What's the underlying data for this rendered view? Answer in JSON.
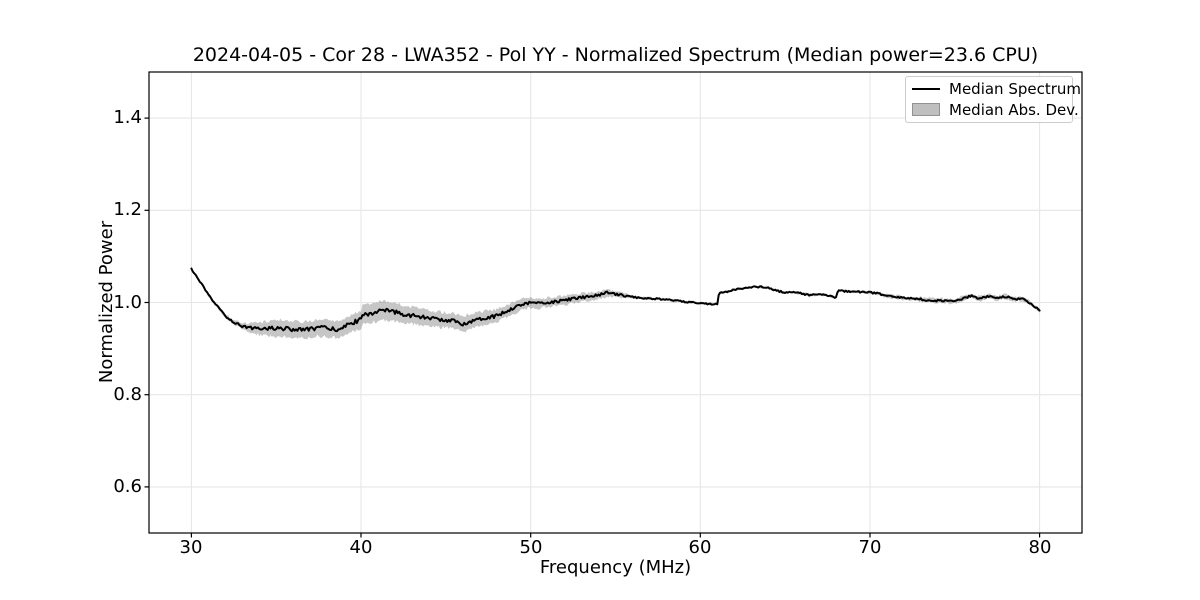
{
  "chart_data": {
    "type": "line",
    "title": "2024-04-05 - Cor 28 - LWA352 - Pol YY - Normalized Spectrum (Median power=23.6 CPU)",
    "xlabel": "Frequency (MHz)",
    "ylabel": "Normalized Power",
    "xlim": [
      27.5,
      82.5
    ],
    "ylim": [
      0.5,
      1.5
    ],
    "xticks": [
      30,
      40,
      50,
      60,
      70,
      80
    ],
    "yticks": [
      0.6,
      0.8,
      1.0,
      1.2,
      1.4
    ],
    "grid": true,
    "legend": [
      "Median Spectrum",
      "Median Abs. Dev."
    ],
    "legend_position": "upper right",
    "colors": {
      "line": "#000000",
      "band": "#808080",
      "band_alpha": 0.45,
      "grid": "#e6e6e6",
      "frame": "#000000",
      "background": "#ffffff",
      "text": "#000000"
    },
    "series": [
      {
        "name": "Median Spectrum",
        "x_start": 30.0,
        "x_step": 0.5,
        "y": [
          1.072,
          1.046,
          1.016,
          0.993,
          0.971,
          0.957,
          0.949,
          0.945,
          0.943,
          0.944,
          0.945,
          0.943,
          0.942,
          0.941,
          0.942,
          0.946,
          0.944,
          0.941,
          0.947,
          0.956,
          0.963,
          0.976,
          0.98,
          0.982,
          0.979,
          0.975,
          0.972,
          0.968,
          0.967,
          0.963,
          0.962,
          0.959,
          0.953,
          0.96,
          0.965,
          0.968,
          0.971,
          0.98,
          0.989,
          0.996,
          1.0,
          0.998,
          1.0,
          1.002,
          1.005,
          1.008,
          1.011,
          1.013,
          1.016,
          1.021,
          1.018,
          1.015,
          1.012,
          1.01,
          1.009,
          1.008,
          1.006,
          1.004,
          1.002,
          1.0,
          0.999,
          0.997,
          0.997,
          1.022,
          1.028,
          1.031,
          1.033,
          1.034,
          1.032,
          1.026,
          1.021,
          1.023,
          1.019,
          1.016,
          1.018,
          1.015,
          1.01,
          1.025,
          1.024,
          1.023,
          1.022,
          1.019,
          1.014,
          1.012,
          1.01,
          1.008,
          1.007,
          1.005,
          1.004,
          1.003,
          1.003,
          1.009,
          1.015,
          1.008,
          1.014,
          1.009,
          1.013,
          1.007,
          1.008,
          0.998,
          0.982
        ]
      },
      {
        "name": "Median Abs. Dev.",
        "x_start": 30.0,
        "x_step": 0.5,
        "half_width": [
          0.002,
          0.002,
          0.003,
          0.003,
          0.004,
          0.005,
          0.007,
          0.01,
          0.013,
          0.016,
          0.018,
          0.018,
          0.018,
          0.017,
          0.018,
          0.019,
          0.019,
          0.018,
          0.018,
          0.018,
          0.019,
          0.02,
          0.021,
          0.021,
          0.02,
          0.019,
          0.018,
          0.018,
          0.017,
          0.017,
          0.016,
          0.017,
          0.017,
          0.016,
          0.015,
          0.015,
          0.014,
          0.013,
          0.013,
          0.012,
          0.011,
          0.011,
          0.01,
          0.01,
          0.01,
          0.009,
          0.009,
          0.009,
          0.008,
          0.008,
          0.006,
          0.005,
          0.002,
          0.002,
          0.002,
          0.002,
          0.002,
          0.002,
          0.002,
          0.002,
          0.002,
          0.002,
          0.002,
          0.002,
          0.002,
          0.002,
          0.002,
          0.002,
          0.002,
          0.002,
          0.002,
          0.002,
          0.002,
          0.002,
          0.002,
          0.002,
          0.002,
          0.002,
          0.002,
          0.002,
          0.003,
          0.003,
          0.004,
          0.004,
          0.004,
          0.004,
          0.005,
          0.005,
          0.005,
          0.005,
          0.005,
          0.005,
          0.005,
          0.005,
          0.005,
          0.005,
          0.005,
          0.005,
          0.004,
          0.004,
          0.004
        ]
      }
    ],
    "render": {
      "substeps": 6,
      "jitter_base": 0.0015,
      "jitter_scale": 0.16,
      "edge_jitter_base": 0.002,
      "edge_jitter_scale": 0.1,
      "sharp_threshold": 0.012,
      "sharp_neighbor": 0.008,
      "sharp_factor": 5,
      "seed": 12345
    }
  }
}
